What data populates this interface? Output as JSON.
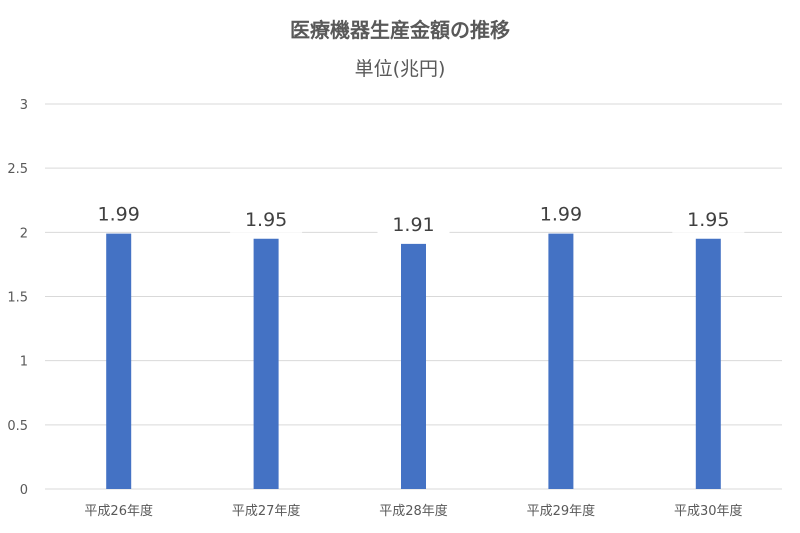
{
  "chart_data": {
    "type": "bar",
    "title": "医療機器生産金額の推移",
    "subtitle": "単位(兆円)",
    "categories": [
      "平成26年度",
      "平成27年度",
      "平成28年度",
      "平成29年度",
      "平成30年度"
    ],
    "values": [
      1.99,
      1.95,
      1.91,
      1.99,
      1.95
    ],
    "data_labels": [
      "1.99",
      "1.95",
      "1.91",
      "1.99",
      "1.95"
    ],
    "ylim": [
      0,
      3
    ],
    "yticks": [
      "0",
      "0.5",
      "1",
      "1.5",
      "2",
      "2.5",
      "3"
    ],
    "xlabel": "",
    "ylabel": "",
    "grid": true,
    "legend": "none",
    "bar_color": "#4472C4"
  }
}
